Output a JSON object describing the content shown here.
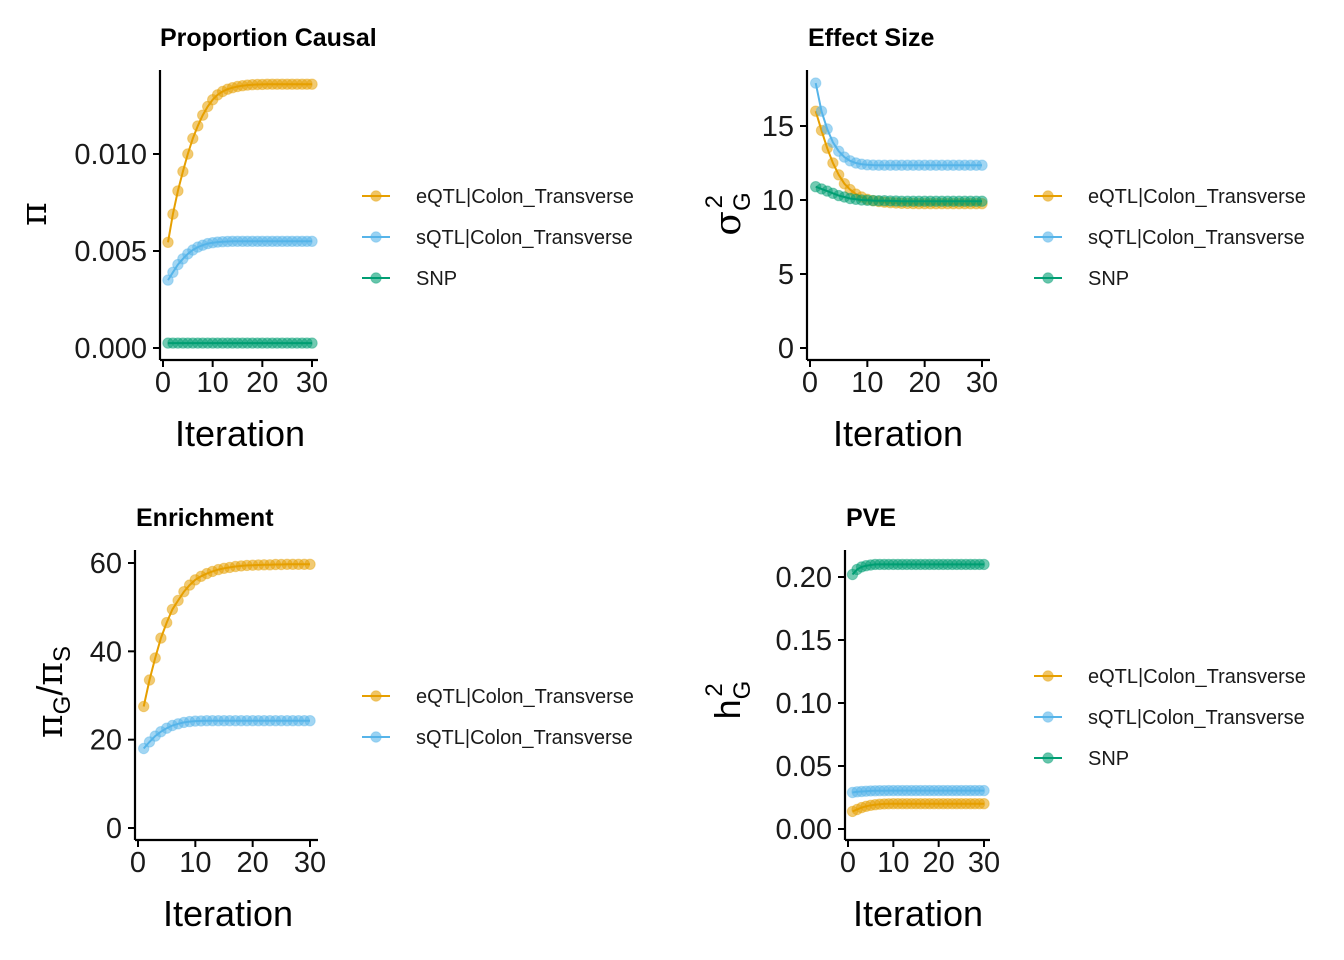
{
  "colors": {
    "eqtl": "#E69F00",
    "sqtl": "#56B4E9",
    "snp": "#009E73"
  },
  "chart_data": [
    {
      "type": "line",
      "title": "Proportion Causal",
      "xlabel": "Iteration",
      "ylabel": "π",
      "xlim": [
        0,
        30
      ],
      "ylim": [
        0,
        0.0145
      ],
      "xticks": [
        "0",
        "10",
        "20",
        "30"
      ],
      "yticks": [
        "0.000",
        "0.005",
        "0.010"
      ],
      "series": [
        {
          "name": "eQTL|Colon_Transverse",
          "values": [
            0.00545,
            0.0069,
            0.0081,
            0.0091,
            0.01,
            0.0108,
            0.01145,
            0.012,
            0.01245,
            0.0128,
            0.01305,
            0.01322,
            0.01334,
            0.01342,
            0.01348,
            0.01352,
            0.01355,
            0.01357,
            0.01358,
            0.01359,
            0.0136,
            0.0136,
            0.0136,
            0.0136,
            0.0136,
            0.0136,
            0.0136,
            0.0136,
            0.0136,
            0.0136
          ]
        },
        {
          "name": "sQTL|Colon_Transverse",
          "values": [
            0.0035,
            0.0039,
            0.0043,
            0.0046,
            0.00485,
            0.00505,
            0.0052,
            0.0053,
            0.00538,
            0.00543,
            0.00546,
            0.00548,
            0.00549,
            0.0055,
            0.0055,
            0.0055,
            0.0055,
            0.0055,
            0.0055,
            0.0055,
            0.0055,
            0.0055,
            0.0055,
            0.0055,
            0.0055,
            0.0055,
            0.0055,
            0.0055,
            0.0055,
            0.0055
          ]
        },
        {
          "name": "SNP",
          "values": [
            0.00025,
            0.00025,
            0.00025,
            0.00025,
            0.00025,
            0.00025,
            0.00025,
            0.00025,
            0.00025,
            0.00025,
            0.00025,
            0.00025,
            0.00025,
            0.00025,
            0.00025,
            0.00025,
            0.00025,
            0.00025,
            0.00025,
            0.00025,
            0.00025,
            0.00025,
            0.00025,
            0.00025,
            0.00025,
            0.00025,
            0.00025,
            0.00025,
            0.00025,
            0.00025
          ]
        }
      ]
    },
    {
      "type": "line",
      "title": "Effect Size",
      "xlabel": "Iteration",
      "ylabel": "σ_G^2",
      "xlim": [
        0,
        30
      ],
      "ylim": [
        0,
        18.5
      ],
      "xticks": [
        "0",
        "10",
        "20",
        "30"
      ],
      "yticks": [
        "0",
        "5",
        "10",
        "15"
      ],
      "series": [
        {
          "name": "eQTL|Colon_Transverse",
          "values": [
            16.0,
            14.7,
            13.5,
            12.5,
            11.7,
            11.1,
            10.7,
            10.4,
            10.2,
            10.05,
            9.95,
            9.9,
            9.85,
            9.82,
            9.8,
            9.78,
            9.77,
            9.76,
            9.75,
            9.75,
            9.75,
            9.75,
            9.75,
            9.75,
            9.75,
            9.75,
            9.75,
            9.75,
            9.75,
            9.75
          ]
        },
        {
          "name": "sQTL|Colon_Transverse",
          "values": [
            17.9,
            16.0,
            14.8,
            13.9,
            13.3,
            12.9,
            12.65,
            12.5,
            12.42,
            12.38,
            12.36,
            12.35,
            12.35,
            12.35,
            12.35,
            12.35,
            12.35,
            12.35,
            12.35,
            12.35,
            12.35,
            12.35,
            12.35,
            12.35,
            12.35,
            12.35,
            12.35,
            12.35,
            12.35,
            12.35
          ]
        },
        {
          "name": "SNP",
          "values": [
            10.9,
            10.75,
            10.6,
            10.45,
            10.3,
            10.2,
            10.1,
            10.05,
            10.0,
            9.98,
            9.96,
            9.95,
            9.95,
            9.94,
            9.93,
            9.92,
            9.92,
            9.92,
            9.92,
            9.92,
            9.92,
            9.92,
            9.92,
            9.92,
            9.92,
            9.92,
            9.92,
            9.92,
            9.92,
            9.92
          ]
        }
      ]
    },
    {
      "type": "line",
      "title": "Enrichment",
      "xlabel": "Iteration",
      "ylabel": "π_G/π_S",
      "xlim": [
        0,
        30
      ],
      "ylim": [
        0,
        62
      ],
      "xticks": [
        "0",
        "10",
        "20",
        "30"
      ],
      "yticks": [
        "0",
        "20",
        "40",
        "60"
      ],
      "series": [
        {
          "name": "eQTL|Colon_Transverse",
          "values": [
            27.5,
            33.5,
            38.5,
            43.0,
            46.5,
            49.5,
            51.5,
            53.5,
            55.0,
            56.2,
            57.0,
            57.6,
            58.1,
            58.5,
            58.8,
            59.0,
            59.2,
            59.35,
            59.45,
            59.5,
            59.55,
            59.6,
            59.6,
            59.65,
            59.65,
            59.7,
            59.7,
            59.7,
            59.7,
            59.7
          ]
        },
        {
          "name": "sQTL|Colon_Transverse",
          "values": [
            18.0,
            19.5,
            20.8,
            21.8,
            22.6,
            23.2,
            23.6,
            23.9,
            24.1,
            24.2,
            24.25,
            24.3,
            24.3,
            24.3,
            24.3,
            24.3,
            24.3,
            24.3,
            24.3,
            24.3,
            24.3,
            24.3,
            24.3,
            24.3,
            24.3,
            24.3,
            24.3,
            24.3,
            24.3,
            24.3
          ]
        }
      ]
    },
    {
      "type": "line",
      "title": "PVE",
      "xlabel": "Iteration",
      "ylabel": "h_G^2",
      "xlim": [
        0,
        30
      ],
      "ylim": [
        0,
        0.22
      ],
      "xticks": [
        "0",
        "10",
        "20",
        "30"
      ],
      "yticks": [
        "0.00",
        "0.05",
        "0.10",
        "0.15",
        "0.20"
      ],
      "series": [
        {
          "name": "eQTL|Colon_Transverse",
          "values": [
            0.014,
            0.0155,
            0.017,
            0.018,
            0.0188,
            0.0193,
            0.0197,
            0.0199,
            0.02,
            0.0201,
            0.0201,
            0.0201,
            0.0201,
            0.0201,
            0.0201,
            0.0201,
            0.0201,
            0.0201,
            0.0201,
            0.0201,
            0.0201,
            0.0201,
            0.0201,
            0.0201,
            0.0201,
            0.0201,
            0.0201,
            0.0201,
            0.0201,
            0.0201
          ]
        },
        {
          "name": "sQTL|Colon_Transverse",
          "values": [
            0.029,
            0.0295,
            0.0298,
            0.03,
            0.0302,
            0.0303,
            0.0304,
            0.0304,
            0.0305,
            0.0305,
            0.0305,
            0.0305,
            0.0305,
            0.0305,
            0.0305,
            0.0305,
            0.0305,
            0.0305,
            0.0305,
            0.0305,
            0.0305,
            0.0305,
            0.0305,
            0.0305,
            0.0305,
            0.0305,
            0.0305,
            0.0305,
            0.0305,
            0.0305
          ]
        },
        {
          "name": "SNP",
          "values": [
            0.202,
            0.206,
            0.208,
            0.209,
            0.2095,
            0.21,
            0.21,
            0.21,
            0.21,
            0.21,
            0.21,
            0.21,
            0.21,
            0.21,
            0.21,
            0.21,
            0.21,
            0.21,
            0.21,
            0.21,
            0.21,
            0.21,
            0.21,
            0.21,
            0.21,
            0.21,
            0.21,
            0.21,
            0.21,
            0.21
          ]
        }
      ]
    }
  ]
}
